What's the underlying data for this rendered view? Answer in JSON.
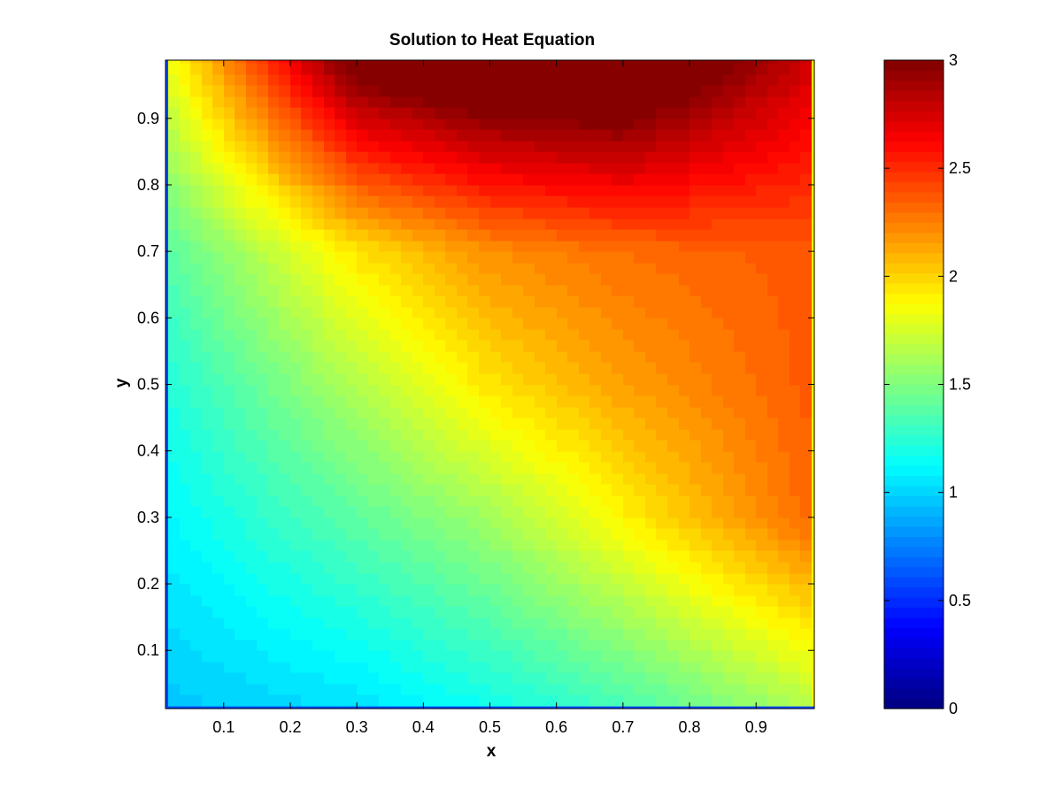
{
  "chart_data": {
    "type": "heatmap",
    "title": "Solution to Heat Equation",
    "xlabel": "x",
    "ylabel": "y",
    "colormap": "jet",
    "xlim": [
      0.0125,
      0.9875
    ],
    "ylim": [
      0.0125,
      0.9875
    ],
    "xticks": [
      0.1,
      0.2,
      0.3,
      0.4,
      0.5,
      0.6,
      0.7,
      0.8,
      0.9
    ],
    "xtick_labels": [
      "0.1",
      "0.2",
      "0.3",
      "0.4",
      "0.5",
      "0.6",
      "0.7",
      "0.8",
      "0.9"
    ],
    "yticks": [
      0.1,
      0.2,
      0.3,
      0.4,
      0.5,
      0.6,
      0.7,
      0.8,
      0.9
    ],
    "ytick_labels": [
      "0.1",
      "0.2",
      "0.3",
      "0.4",
      "0.5",
      "0.6",
      "0.7",
      "0.8",
      "0.9"
    ],
    "colorbar": {
      "clim": [
        0,
        3
      ],
      "ticks": [
        0,
        0.5,
        1,
        1.5,
        2,
        2.5,
        3
      ],
      "tick_labels": [
        "0",
        "0.5",
        "1",
        "1.5",
        "2",
        "2.5",
        "3"
      ]
    },
    "grid": false,
    "x_values": [
      0.1,
      0.3,
      0.5,
      0.7,
      0.9
    ],
    "y_values": [
      0.1,
      0.3,
      0.5,
      0.7,
      0.9
    ],
    "z_values": [
      [
        1.05,
        1.15,
        1.3,
        1.5,
        1.75
      ],
      [
        1.2,
        1.4,
        1.6,
        1.9,
        2.2
      ],
      [
        1.35,
        1.65,
        1.95,
        2.15,
        2.3
      ],
      [
        1.55,
        1.95,
        2.2,
        2.3,
        2.35
      ],
      [
        2.0,
        2.75,
        2.95,
        3.0,
        2.75
      ]
    ]
  }
}
